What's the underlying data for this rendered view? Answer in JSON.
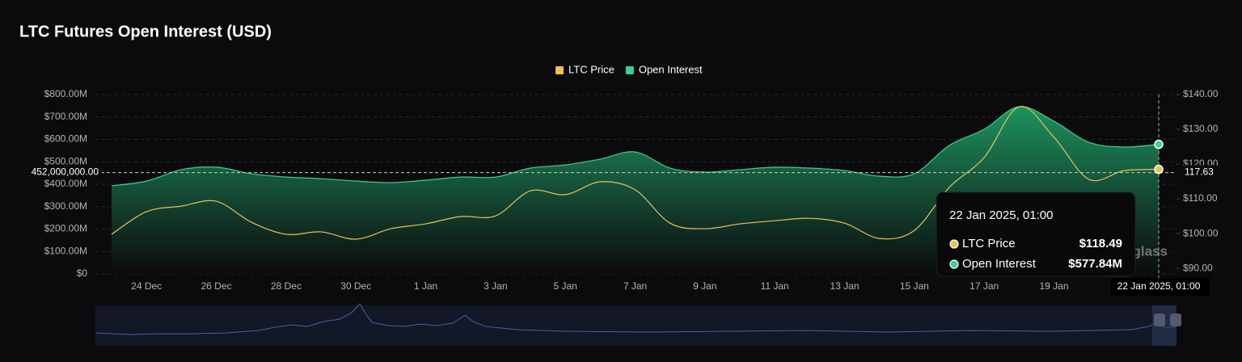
{
  "chart_data": {
    "type": "line",
    "title": "LTC Futures Open Interest (USD)",
    "categories": [
      null,
      "24 Dec",
      null,
      "26 Dec",
      null,
      "28 Dec",
      null,
      "30 Dec",
      null,
      "1 Jan",
      null,
      "3 Jan",
      null,
      "5 Jan",
      null,
      "7 Jan",
      null,
      "9 Jan",
      null,
      "11 Jan",
      null,
      "13 Jan",
      null,
      "15 Jan",
      null,
      "17 Jan",
      null,
      "19 Jan",
      null,
      null,
      "22 Jan 2025, 01:00"
    ],
    "series": [
      {
        "name": "LTC Price",
        "color": "#e8c15a",
        "axis": "y2",
        "values": [
          99.8,
          106.3,
          107.9,
          109.3,
          103.3,
          99.8,
          100.5,
          98.4,
          101.4,
          102.8,
          104.9,
          105.1,
          112.3,
          111.2,
          114.9,
          112.6,
          103.0,
          101.4,
          102.8,
          103.7,
          104.4,
          103.0,
          98.6,
          100.9,
          113.3,
          121.9,
          136.5,
          127.7,
          115.6,
          118.1,
          118.49
        ],
        "value_labels": [
          null,
          null,
          null,
          null,
          null,
          null,
          null,
          null,
          null,
          null,
          null,
          null,
          null,
          null,
          null,
          null,
          null,
          null,
          null,
          null,
          null,
          null,
          null,
          null,
          null,
          null,
          null,
          null,
          null,
          null,
          "$118.49"
        ]
      },
      {
        "name": "Open Interest",
        "color": "#3ecf8e",
        "area": true,
        "values": [
          393000000,
          414000000,
          465000000,
          476000000,
          447000000,
          432000000,
          425000000,
          414000000,
          407000000,
          418000000,
          432000000,
          432000000,
          472000000,
          486000000,
          512000000,
          544000000,
          472000000,
          454000000,
          465000000,
          476000000,
          472000000,
          461000000,
          436000000,
          447000000,
          573000000,
          645000000,
          746000000,
          681000000,
          587000000,
          566000000,
          577840000
        ],
        "value_labels": [
          null,
          null,
          null,
          null,
          null,
          null,
          null,
          null,
          null,
          null,
          null,
          null,
          null,
          null,
          null,
          null,
          null,
          null,
          null,
          null,
          null,
          null,
          null,
          null,
          null,
          null,
          null,
          null,
          null,
          null,
          "$577.84M"
        ]
      }
    ],
    "ylim": [
      0,
      800000000
    ],
    "yticks": [
      {
        "value": 0,
        "label": "$0"
      },
      {
        "value": 100000000,
        "label": "$100.00M"
      },
      {
        "value": 200000000,
        "label": "$200.00M"
      },
      {
        "value": 300000000,
        "label": "$300.00M"
      },
      {
        "value": 400000000,
        "label": "$400.00M"
      },
      {
        "value": 500000000,
        "label": "$500.00M"
      },
      {
        "value": 600000000,
        "label": "$600.00M"
      },
      {
        "value": 700000000,
        "label": "$700.00M"
      },
      {
        "value": 800000000,
        "label": "$800.00M"
      }
    ],
    "y2lim": [
      88.4,
      140
    ],
    "y2ticks": [
      {
        "value": 90,
        "label": "$90.00"
      },
      {
        "value": 100,
        "label": "$100.00"
      },
      {
        "value": 110,
        "label": "$110.00"
      },
      {
        "value": 120,
        "label": "$120.00"
      },
      {
        "value": 130,
        "label": "$130.00"
      },
      {
        "value": 140,
        "label": "$140.00"
      }
    ],
    "grid": true,
    "legend": "top",
    "crosshair": {
      "y": {
        "value": 452000000,
        "label": "452,000,000.00"
      },
      "y2": 117.63,
      "index": 30
    },
    "watermark": "glass"
  }
}
